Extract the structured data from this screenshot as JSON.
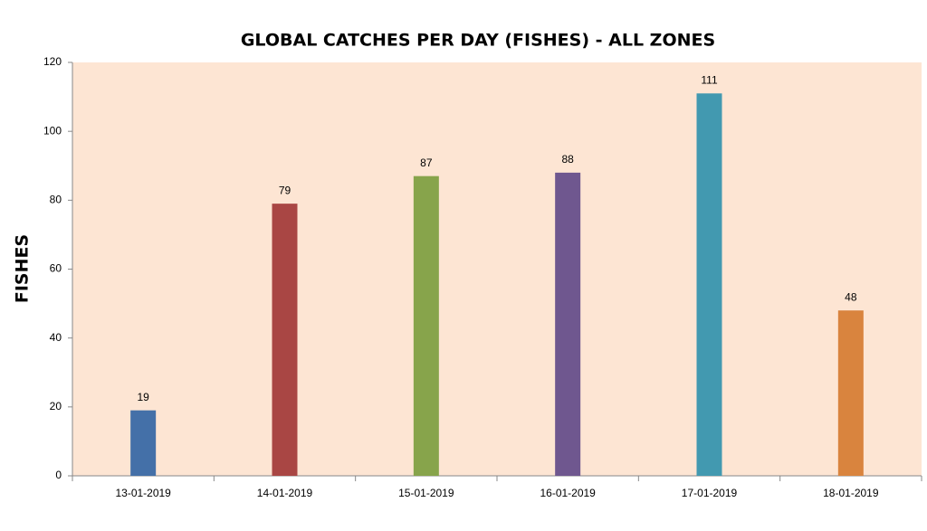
{
  "chart_data": {
    "type": "bar",
    "title": "GLOBAL CATCHES PER DAY (FISHES) - ALL ZONES",
    "y_label": "FISHES",
    "categories": [
      "13-01-2019",
      "14-01-2019",
      "15-01-2019",
      "16-01-2019",
      "17-01-2019",
      "18-01-2019"
    ],
    "values": [
      19,
      79,
      87,
      88,
      111,
      48
    ],
    "colors": [
      "#4470a8",
      "#a94644",
      "#87a44b",
      "#6f578f",
      "#4299b0",
      "#d9843e"
    ],
    "ylim": [
      0,
      120
    ],
    "yticks": [
      0,
      20,
      40,
      60,
      80,
      100,
      120
    ],
    "grid": false,
    "plot_background": "#fde5d3"
  }
}
